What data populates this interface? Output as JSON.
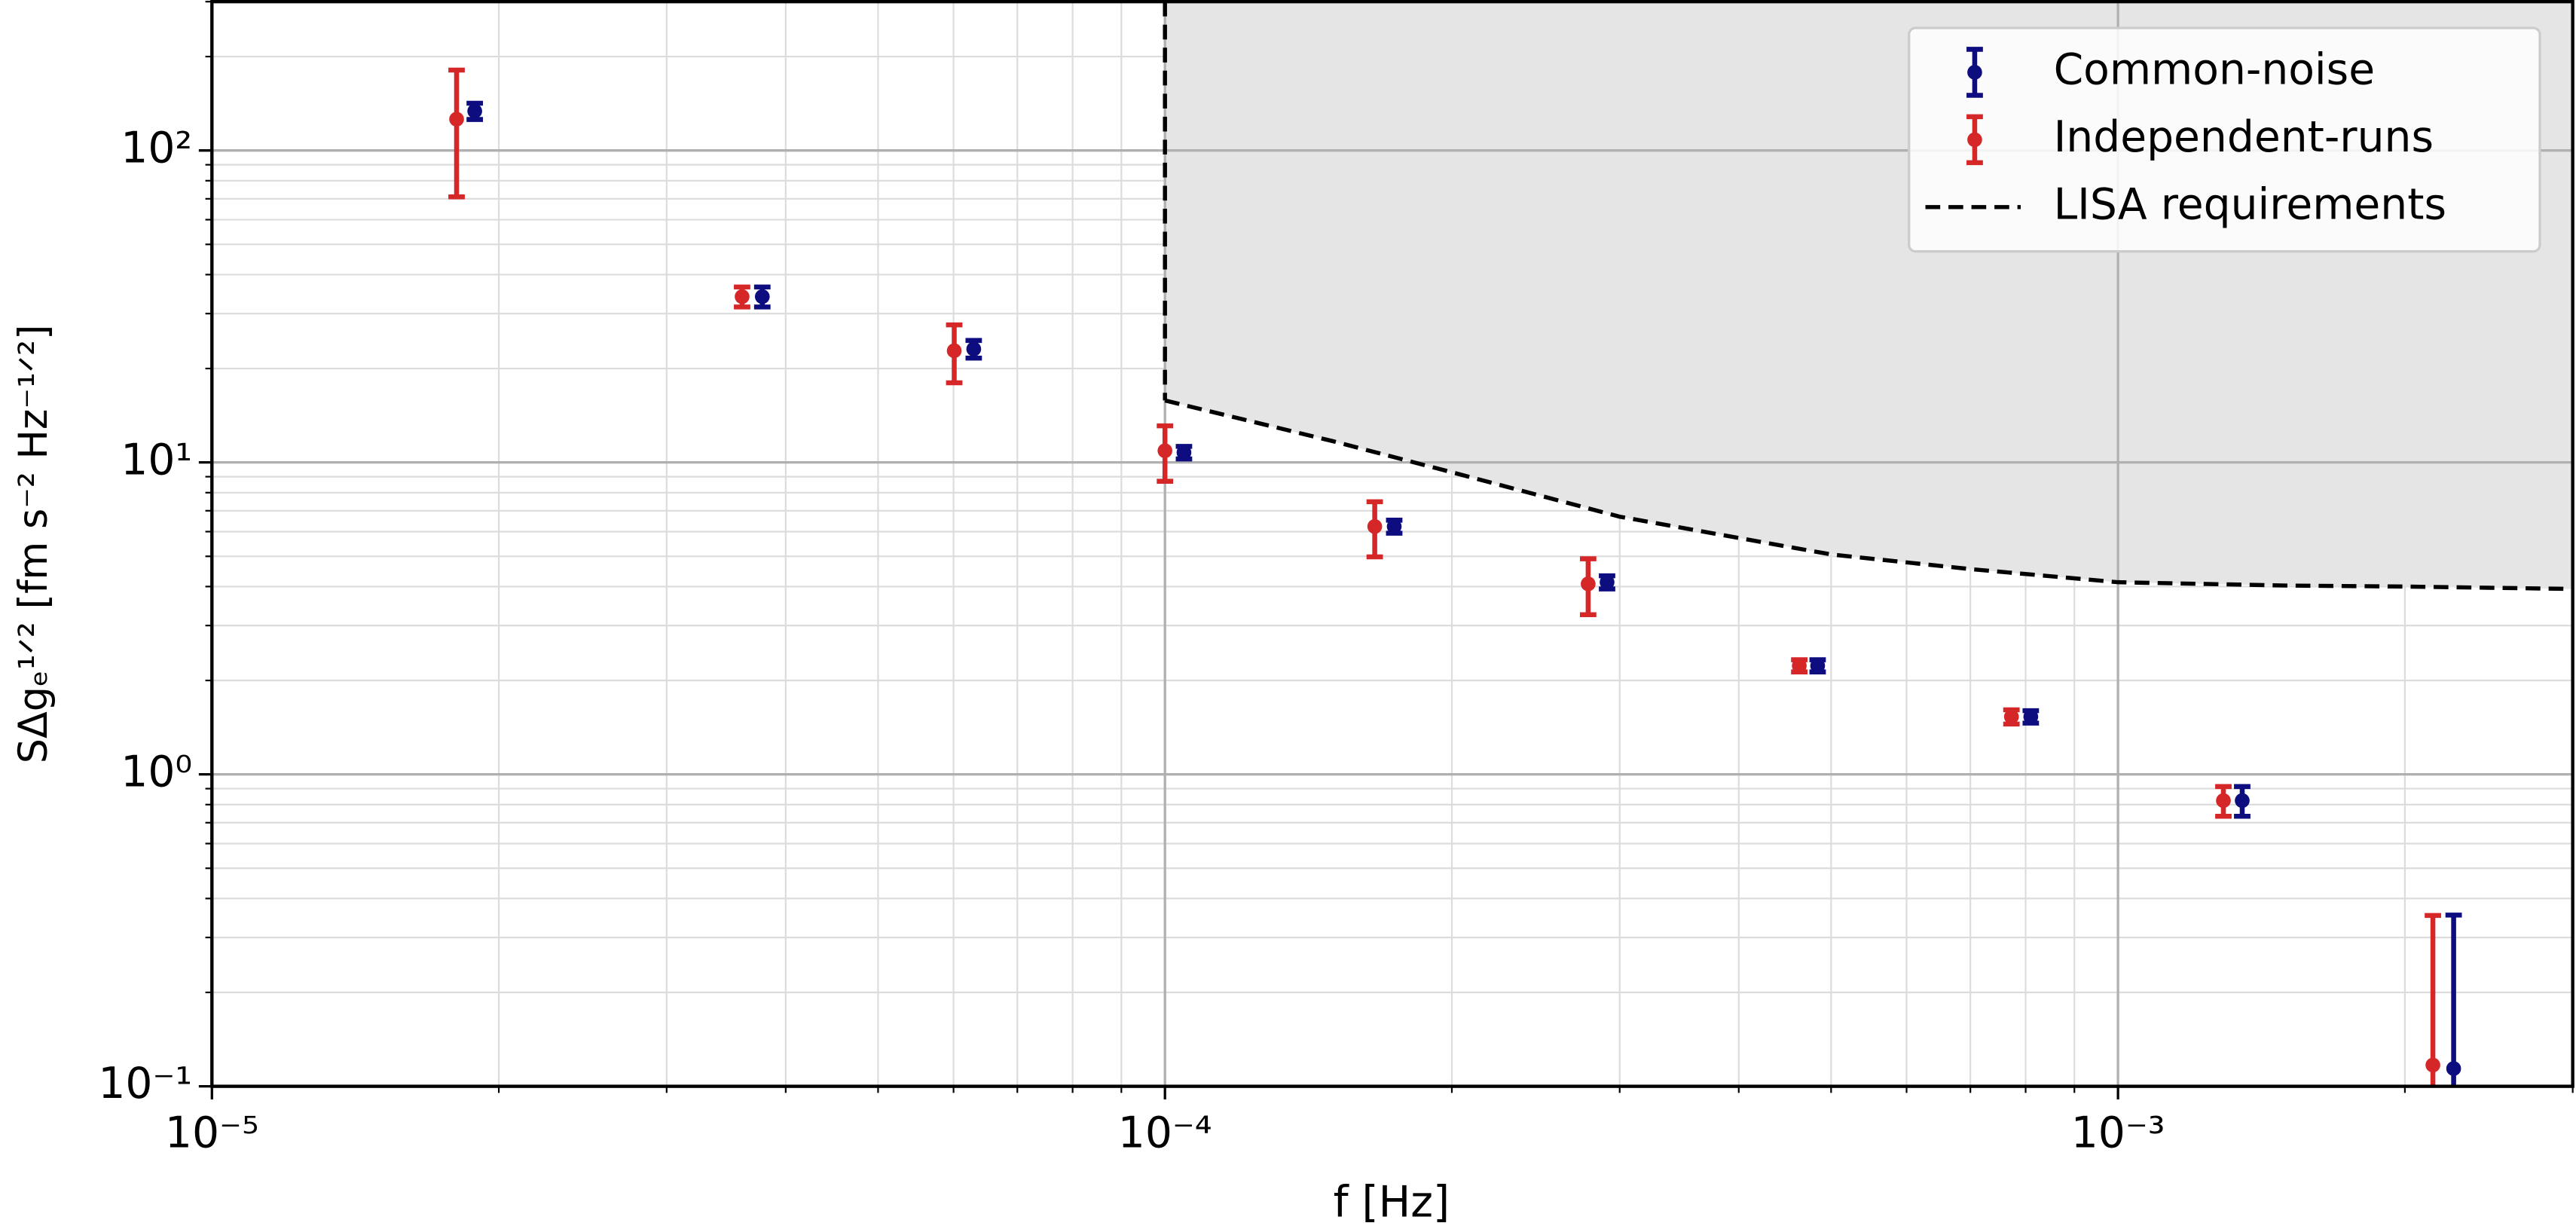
{
  "chart_data": {
    "type": "errorbar",
    "xlabel": "f [Hz]",
    "ylabel": "SΔgₑ¹ᐟ² [fm s⁻² Hz⁻¹ᐟ²]",
    "xscale": "log",
    "yscale": "log",
    "xlim": [
      1e-05,
      0.003
    ],
    "ylim": [
      0.1,
      300
    ],
    "xticks": [
      {
        "value": 1e-05,
        "label": "10⁻⁵"
      },
      {
        "value": 0.0001,
        "label": "10⁻⁴"
      },
      {
        "value": 0.001,
        "label": "10⁻³"
      }
    ],
    "yticks": [
      {
        "value": 0.1,
        "label": "10⁻¹"
      },
      {
        "value": 1,
        "label": "10⁰"
      },
      {
        "value": 10,
        "label": "10¹"
      },
      {
        "value": 100,
        "label": "10²"
      }
    ],
    "xminor_ticks": [
      2e-05,
      3e-05,
      4e-05,
      5e-05,
      6e-05,
      7e-05,
      8e-05,
      9e-05,
      0.0002,
      0.0003,
      0.0004,
      0.0005,
      0.0006,
      0.0007,
      0.0008,
      0.0009,
      0.002,
      0.003
    ],
    "yminor_ticks": [
      0.2,
      0.3,
      0.4,
      0.5,
      0.6,
      0.7,
      0.8,
      0.9,
      2,
      3,
      4,
      5,
      6,
      7,
      8,
      9,
      20,
      30,
      40,
      50,
      60,
      70,
      80,
      90,
      200,
      300
    ],
    "grid": true,
    "legend": "upper right",
    "series": [
      {
        "name": "Common-noise",
        "color": "#0d0d80",
        "x": [
          1.887e-05,
          3.78e-05,
          6.3e-05,
          0.0001047,
          0.000174,
          0.000291,
          0.000484,
          0.00081,
          0.00135,
          0.00225
        ],
        "values": [
          133.7,
          34.0,
          23.1,
          10.76,
          6.23,
          4.13,
          2.23,
          1.53,
          0.824,
          0.114
        ],
        "errors": [
          8,
          2.5,
          1.5,
          0.5,
          0.3,
          0.2,
          0.1,
          0.07,
          0.09,
          0.24
        ]
      },
      {
        "name": "Independent-runs",
        "color": "#d62728",
        "x": [
          1.806e-05,
          3.6e-05,
          6.01e-05,
          0.0001,
          0.000166,
          0.000278,
          0.000463,
          0.000773,
          0.00129,
          0.00214
        ],
        "values": [
          126,
          34.0,
          22.8,
          10.9,
          6.23,
          4.08,
          2.23,
          1.53,
          0.824,
          0.117
        ],
        "errors": [
          55,
          2.5,
          4.8,
          2.2,
          1.25,
          0.83,
          0.1,
          0.08,
          0.09,
          0.236
        ]
      },
      {
        "name": "LISA requirements",
        "type": "line",
        "style": "dashed",
        "color": "#000000",
        "shade": "#e5e5e5",
        "x": [
          0.0001,
          0.00015,
          0.0002,
          0.0003,
          0.0005,
          0.0007,
          0.001,
          0.0015,
          0.002,
          0.003
        ],
        "values": [
          15.8,
          11.7,
          9.3,
          6.7,
          5.07,
          4.55,
          4.13,
          4.03,
          4.0,
          3.93
        ]
      }
    ]
  }
}
